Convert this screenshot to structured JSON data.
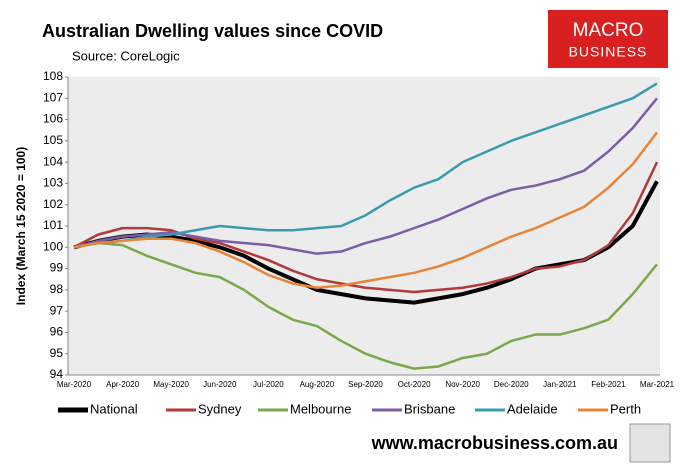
{
  "chart_data": {
    "type": "line",
    "title": "Australian Dwelling values since COVID",
    "subtitle": "Source: CoreLogic",
    "y_label": "Index (March 15 2020 = 100)",
    "categories": [
      "Mar-2020",
      null,
      "Apr-2020",
      null,
      "May-2020",
      null,
      "Jun-2020",
      null,
      "Jul-2020",
      null,
      "Aug-2020",
      null,
      "Sep-2020",
      null,
      "Oct-2020",
      null,
      "Nov-2020",
      null,
      "Dec-2020",
      null,
      "Jan-2021",
      null,
      "Feb-2021",
      null,
      "Mar-2021"
    ],
    "series": [
      {
        "name": "National",
        "color": "#000000",
        "values": [
          100,
          100.3,
          100.5,
          100.6,
          100.5,
          100.3,
          100.0,
          99.6,
          99.0,
          98.5,
          98.0,
          97.8,
          97.6,
          97.5,
          97.4,
          97.6,
          97.8,
          98.1,
          98.5,
          99.0,
          99.2,
          99.4,
          100.0,
          101.0,
          103.1
        ]
      },
      {
        "name": "Sydney",
        "color": "#b33a3a",
        "values": [
          100,
          100.6,
          100.9,
          100.9,
          100.8,
          100.4,
          100.2,
          99.8,
          99.4,
          98.9,
          98.5,
          98.3,
          98.1,
          98.0,
          97.9,
          98.0,
          98.1,
          98.3,
          98.6,
          99.0,
          99.1,
          99.4,
          100.1,
          101.6,
          104.0
        ]
      },
      {
        "name": "Melbourne",
        "color": "#7aa84a",
        "values": [
          100,
          100.2,
          100.1,
          99.6,
          99.2,
          98.8,
          98.6,
          98.0,
          97.2,
          96.6,
          96.3,
          95.6,
          95.0,
          94.6,
          94.3,
          94.4,
          94.8,
          95.0,
          95.6,
          95.9,
          95.9,
          96.2,
          96.6,
          97.8,
          99.2
        ]
      },
      {
        "name": "Brisbane",
        "color": "#7b5ea7",
        "values": [
          100,
          100.3,
          100.5,
          100.6,
          100.7,
          100.5,
          100.3,
          100.2,
          100.1,
          99.9,
          99.7,
          99.8,
          100.2,
          100.5,
          100.9,
          101.3,
          101.8,
          102.3,
          102.7,
          102.9,
          103.2,
          103.6,
          104.5,
          105.6,
          107.0
        ]
      },
      {
        "name": "Adelaide",
        "color": "#3a9bb0",
        "values": [
          100,
          100.2,
          100.3,
          100.5,
          100.6,
          100.8,
          101.0,
          100.9,
          100.8,
          100.8,
          100.9,
          101.0,
          101.5,
          102.2,
          102.8,
          103.2,
          104.0,
          104.5,
          105.0,
          105.4,
          105.8,
          106.2,
          106.6,
          107.0,
          107.7
        ]
      },
      {
        "name": "Perth",
        "color": "#e8843a",
        "values": [
          100,
          100.2,
          100.3,
          100.4,
          100.4,
          100.2,
          99.8,
          99.3,
          98.7,
          98.3,
          98.1,
          98.2,
          98.4,
          98.6,
          98.8,
          99.1,
          99.5,
          100.0,
          100.5,
          100.9,
          101.4,
          101.9,
          102.8,
          103.9,
          105.4
        ]
      }
    ],
    "ylim": [
      94,
      108
    ],
    "yticks": [
      94,
      95,
      96,
      97,
      98,
      99,
      100,
      101,
      102,
      103,
      104,
      105,
      106,
      107,
      108
    ],
    "legend": "bottom"
  },
  "logo": [
    "MACRO",
    "BUSINESS"
  ],
  "footer": "www.macrobusiness.com.au"
}
